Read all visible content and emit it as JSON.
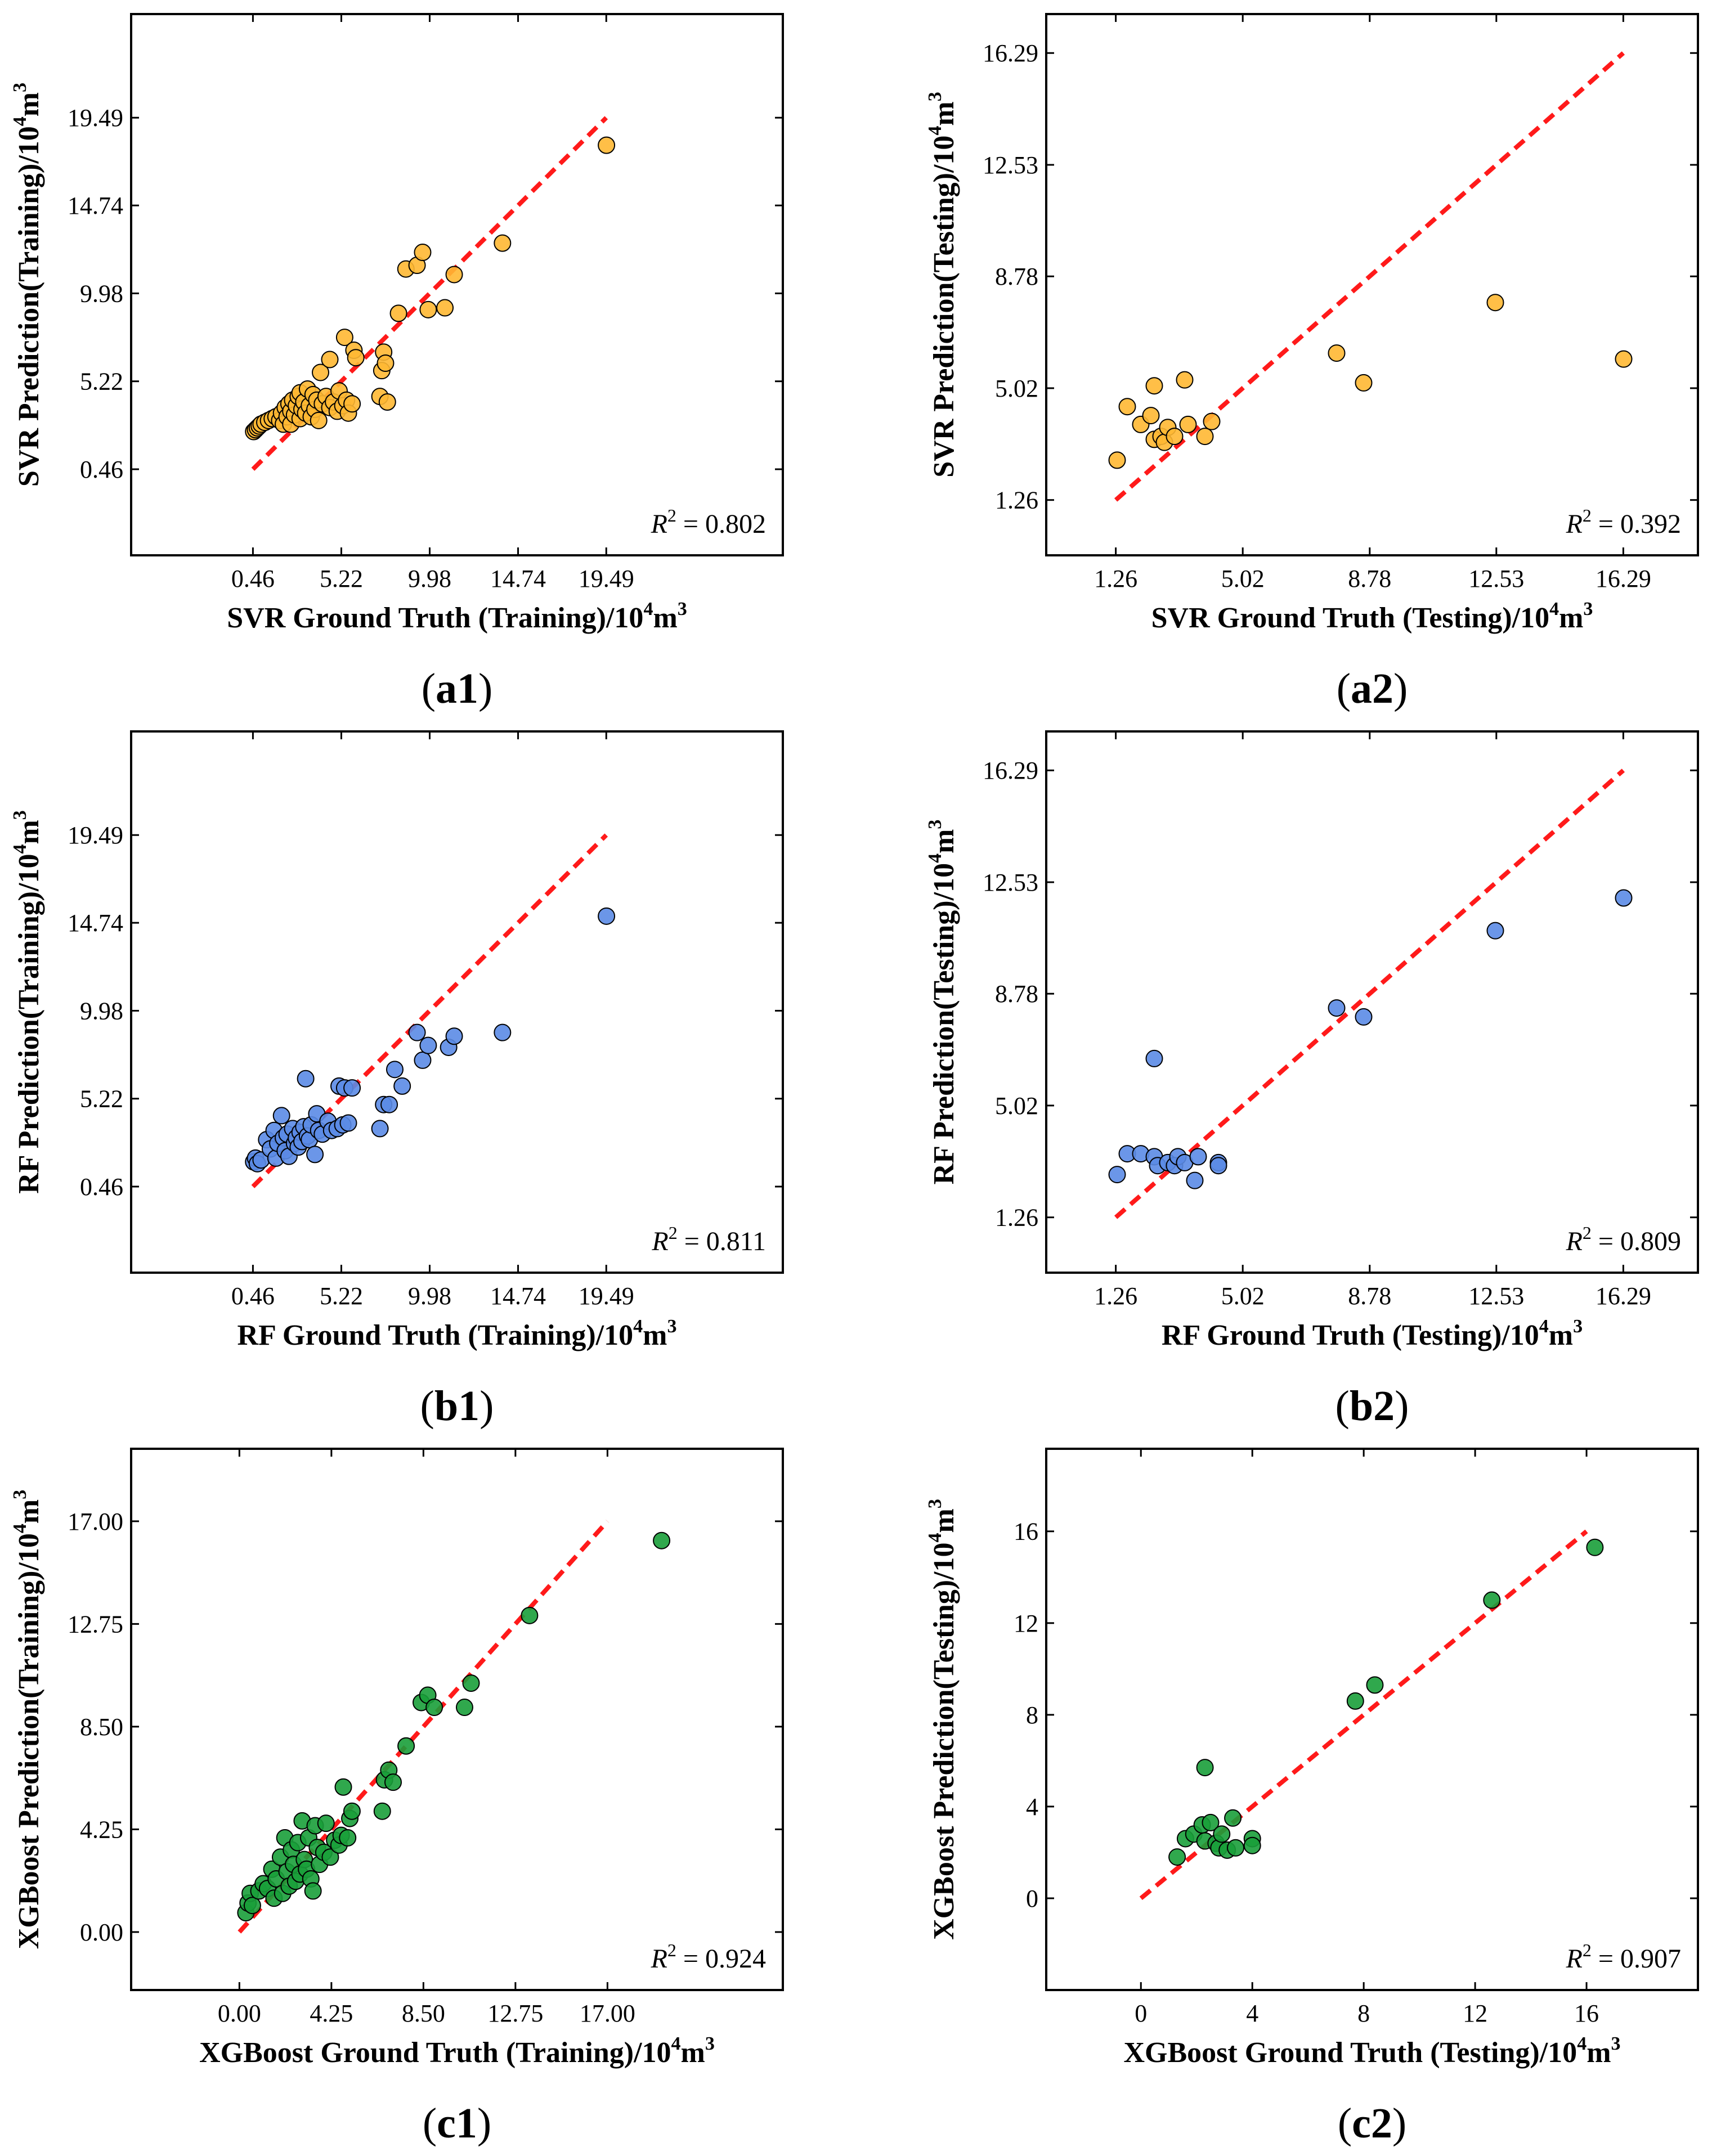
{
  "figure": {
    "colors": {
      "orange": "#ffb833",
      "blue": "#5b8be6",
      "green": "#1a9e3a",
      "ideal_line": "#ff1a1a",
      "marker_edge": "#000000"
    }
  },
  "chart_data": [
    {
      "id": "a1",
      "type": "scatter",
      "panel_label": "a1",
      "color": "orange",
      "xlabel_prefix": "SVR Ground Truth (Training)/10",
      "ylabel_prefix": "SVR Prediction(Training)/10",
      "unit_sup": "4",
      "unit_base": "m",
      "unit_sup2": "3",
      "r2_label": "R",
      "r2_sup": "2",
      "r2_text": " = 0.802",
      "xticks": [
        "0.46",
        "5.22",
        "9.98",
        "14.74",
        "19.49"
      ],
      "yticks": [
        "0.46",
        "5.22",
        "9.98",
        "14.74",
        "19.49"
      ],
      "xlim": [
        -6.1,
        29.0
      ],
      "ylim": [
        -4.2,
        25.1
      ],
      "ideal_line": [
        0.46,
        19.49
      ],
      "points": [
        [
          0.5,
          2.5
        ],
        [
          0.6,
          2.6
        ],
        [
          0.7,
          2.7
        ],
        [
          0.8,
          2.8
        ],
        [
          0.9,
          2.9
        ],
        [
          1.1,
          3.0
        ],
        [
          1.3,
          3.1
        ],
        [
          1.5,
          3.2
        ],
        [
          1.7,
          3.3
        ],
        [
          1.9,
          3.1
        ],
        [
          2.0,
          3.5
        ],
        [
          2.1,
          2.9
        ],
        [
          2.2,
          3.8
        ],
        [
          2.3,
          3.3
        ],
        [
          2.4,
          4.0
        ],
        [
          2.5,
          3.6
        ],
        [
          2.5,
          2.9
        ],
        [
          2.6,
          4.2
        ],
        [
          2.7,
          3.4
        ],
        [
          2.8,
          3.9
        ],
        [
          2.9,
          4.4
        ],
        [
          3.0,
          3.2
        ],
        [
          3.0,
          4.6
        ],
        [
          3.1,
          3.7
        ],
        [
          3.2,
          4.1
        ],
        [
          3.3,
          3.5
        ],
        [
          3.4,
          4.8
        ],
        [
          3.5,
          3.9
        ],
        [
          3.6,
          3.3
        ],
        [
          3.7,
          4.5
        ],
        [
          3.8,
          3.7
        ],
        [
          3.9,
          4.2
        ],
        [
          4.0,
          3.1
        ],
        [
          4.1,
          5.7
        ],
        [
          4.2,
          4.0
        ],
        [
          4.4,
          4.4
        ],
        [
          4.6,
          3.8
        ],
        [
          4.8,
          4.1
        ],
        [
          5.0,
          3.6
        ],
        [
          5.1,
          4.7
        ],
        [
          5.3,
          3.9
        ],
        [
          5.5,
          4.2
        ],
        [
          5.6,
          3.5
        ],
        [
          5.8,
          4.0
        ],
        [
          4.6,
          6.4
        ],
        [
          5.4,
          7.6
        ],
        [
          5.9,
          6.9
        ],
        [
          6.0,
          6.5
        ],
        [
          7.4,
          5.8
        ],
        [
          7.5,
          6.8
        ],
        [
          7.6,
          6.2
        ],
        [
          7.3,
          4.4
        ],
        [
          7.7,
          4.1
        ],
        [
          8.3,
          8.9
        ],
        [
          8.7,
          11.3
        ],
        [
          9.3,
          11.5
        ],
        [
          9.6,
          12.2
        ],
        [
          9.9,
          9.1
        ],
        [
          10.8,
          9.2
        ],
        [
          11.3,
          11.0
        ],
        [
          13.9,
          12.7
        ],
        [
          19.5,
          18.0
        ]
      ]
    },
    {
      "id": "a2",
      "type": "scatter",
      "panel_label": "a2",
      "color": "orange",
      "xlabel_prefix": "SVR Ground Truth (Testing)/10",
      "ylabel_prefix": "SVR Prediction(Testing)/10",
      "unit_sup": "4",
      "unit_base": "m",
      "unit_sup2": "3",
      "r2_label": "R",
      "r2_sup": "2",
      "r2_text": " = 0.392",
      "xticks": [
        "1.26",
        "5.02",
        "8.78",
        "12.53",
        "16.29"
      ],
      "yticks": [
        "1.26",
        "5.02",
        "8.78",
        "12.53",
        "16.29"
      ],
      "xlim": [
        -0.8,
        18.5
      ],
      "ylim": [
        -0.6,
        17.6
      ],
      "ideal_line": [
        1.26,
        16.29
      ],
      "points": [
        [
          1.3,
          2.6
        ],
        [
          1.6,
          4.4
        ],
        [
          2.0,
          3.8
        ],
        [
          2.3,
          4.1
        ],
        [
          2.4,
          3.3
        ],
        [
          2.6,
          3.4
        ],
        [
          2.7,
          3.2
        ],
        [
          2.8,
          3.7
        ],
        [
          3.0,
          3.4
        ],
        [
          3.3,
          5.3
        ],
        [
          3.4,
          3.8
        ],
        [
          3.9,
          3.4
        ],
        [
          4.1,
          3.9
        ],
        [
          2.4,
          5.1
        ],
        [
          7.8,
          6.2
        ],
        [
          8.6,
          5.2
        ],
        [
          12.5,
          7.9
        ],
        [
          16.3,
          6.0
        ]
      ]
    },
    {
      "id": "b1",
      "type": "scatter",
      "panel_label": "b1",
      "color": "blue",
      "xlabel_prefix": "RF Ground Truth (Training)/10",
      "ylabel_prefix": "RF Prediction(Training)/10",
      "unit_sup": "4",
      "unit_base": "m",
      "unit_sup2": "3",
      "r2_label": "R",
      "r2_sup": "2",
      "r2_text": " = 0.811",
      "xticks": [
        "0.46",
        "5.22",
        "9.98",
        "14.74",
        "19.49"
      ],
      "yticks": [
        "0.46",
        "5.22",
        "9.98",
        "14.74",
        "19.49"
      ],
      "xlim": [
        -6.1,
        29.0
      ],
      "ylim": [
        -4.2,
        25.1
      ],
      "ideal_line": [
        0.46,
        19.49
      ],
      "points": [
        [
          0.5,
          1.8
        ],
        [
          0.6,
          2.0
        ],
        [
          0.7,
          1.7
        ],
        [
          0.9,
          1.9
        ],
        [
          1.2,
          3.0
        ],
        [
          1.4,
          2.5
        ],
        [
          1.6,
          3.5
        ],
        [
          1.7,
          2.0
        ],
        [
          1.8,
          2.8
        ],
        [
          2.0,
          4.3
        ],
        [
          2.1,
          3.1
        ],
        [
          2.2,
          2.4
        ],
        [
          2.3,
          3.3
        ],
        [
          2.4,
          2.1
        ],
        [
          2.6,
          3.6
        ],
        [
          2.7,
          2.8
        ],
        [
          2.8,
          3.1
        ],
        [
          2.9,
          2.6
        ],
        [
          3.0,
          3.4
        ],
        [
          3.1,
          2.9
        ],
        [
          3.2,
          3.7
        ],
        [
          3.3,
          6.3
        ],
        [
          3.4,
          3.2
        ],
        [
          3.5,
          3.0
        ],
        [
          3.6,
          3.8
        ],
        [
          3.8,
          2.2
        ],
        [
          3.9,
          4.4
        ],
        [
          4.0,
          3.5
        ],
        [
          4.2,
          3.3
        ],
        [
          4.5,
          4.0
        ],
        [
          4.7,
          3.5
        ],
        [
          5.0,
          3.6
        ],
        [
          5.1,
          5.9
        ],
        [
          5.3,
          3.8
        ],
        [
          5.4,
          5.8
        ],
        [
          5.6,
          3.9
        ],
        [
          5.8,
          5.8
        ],
        [
          7.3,
          3.6
        ],
        [
          7.5,
          4.9
        ],
        [
          7.8,
          4.9
        ],
        [
          8.1,
          6.8
        ],
        [
          8.5,
          5.9
        ],
        [
          9.3,
          8.8
        ],
        [
          9.6,
          7.3
        ],
        [
          9.9,
          8.1
        ],
        [
          11.0,
          8.0
        ],
        [
          11.3,
          8.6
        ],
        [
          13.9,
          8.8
        ],
        [
          19.5,
          15.1
        ]
      ]
    },
    {
      "id": "b2",
      "type": "scatter",
      "panel_label": "b2",
      "color": "blue",
      "xlabel_prefix": "RF Ground Truth (Testing)/10",
      "ylabel_prefix": "RF Prediction(Testing)/10",
      "unit_sup": "4",
      "unit_base": "m",
      "unit_sup2": "3",
      "r2_label": "R",
      "r2_sup": "2",
      "r2_text": " = 0.809",
      "xticks": [
        "1.26",
        "5.02",
        "8.78",
        "12.53",
        "16.29"
      ],
      "yticks": [
        "1.26",
        "5.02",
        "8.78",
        "12.53",
        "16.29"
      ],
      "xlim": [
        -0.8,
        18.5
      ],
      "ylim": [
        -0.6,
        17.6
      ],
      "ideal_line": [
        1.26,
        16.29
      ],
      "points": [
        [
          1.3,
          2.7
        ],
        [
          1.6,
          3.4
        ],
        [
          2.0,
          3.4
        ],
        [
          2.4,
          3.3
        ],
        [
          2.5,
          3.0
        ],
        [
          2.8,
          3.1
        ],
        [
          3.0,
          3.0
        ],
        [
          3.1,
          3.3
        ],
        [
          3.3,
          3.1
        ],
        [
          3.6,
          2.5
        ],
        [
          3.7,
          3.3
        ],
        [
          4.3,
          3.1
        ],
        [
          4.3,
          3.0
        ],
        [
          2.4,
          6.6
        ],
        [
          7.8,
          8.3
        ],
        [
          8.6,
          8.0
        ],
        [
          12.5,
          10.9
        ],
        [
          16.3,
          12.0
        ]
      ]
    },
    {
      "id": "c1",
      "type": "scatter",
      "panel_label": "c1",
      "color": "green",
      "xlabel_prefix": "XGBoost Ground Truth (Training)/10",
      "ylabel_prefix": "XGBoost Prediction(Training)/10",
      "unit_sup": "4",
      "unit_base": "m",
      "unit_sup2": "3",
      "r2_label": "R",
      "r2_sup": "2",
      "r2_text": " = 0.924",
      "xticks": [
        "0.00",
        "4.25",
        "8.50",
        "12.75",
        "17.00"
      ],
      "yticks": [
        "0.00",
        "4.25",
        "8.50",
        "12.75",
        "17.00"
      ],
      "xlim": [
        -5.0,
        25.1
      ],
      "ylim": [
        -2.4,
        20.0
      ],
      "ideal_line": [
        0.0,
        17.0
      ],
      "points": [
        [
          0.3,
          0.8
        ],
        [
          0.4,
          1.2
        ],
        [
          0.5,
          1.6
        ],
        [
          0.6,
          1.1
        ],
        [
          0.9,
          1.7
        ],
        [
          1.1,
          2.0
        ],
        [
          1.3,
          1.8
        ],
        [
          1.5,
          2.6
        ],
        [
          1.6,
          1.4
        ],
        [
          1.7,
          2.2
        ],
        [
          1.9,
          3.1
        ],
        [
          2.0,
          1.6
        ],
        [
          2.1,
          3.9
        ],
        [
          2.2,
          2.5
        ],
        [
          2.3,
          1.9
        ],
        [
          2.4,
          3.4
        ],
        [
          2.5,
          2.8
        ],
        [
          2.6,
          2.1
        ],
        [
          2.7,
          3.7
        ],
        [
          2.8,
          2.4
        ],
        [
          2.9,
          4.6
        ],
        [
          3.0,
          3.0
        ],
        [
          3.1,
          2.6
        ],
        [
          3.2,
          3.9
        ],
        [
          3.3,
          2.2
        ],
        [
          3.4,
          1.7
        ],
        [
          3.5,
          4.4
        ],
        [
          3.6,
          3.5
        ],
        [
          3.7,
          2.8
        ],
        [
          3.9,
          3.3
        ],
        [
          4.0,
          4.5
        ],
        [
          4.2,
          3.1
        ],
        [
          4.4,
          3.8
        ],
        [
          4.6,
          3.6
        ],
        [
          4.7,
          4.0
        ],
        [
          4.8,
          6.0
        ],
        [
          5.0,
          3.9
        ],
        [
          5.1,
          4.7
        ],
        [
          5.2,
          5.0
        ],
        [
          6.6,
          5.0
        ],
        [
          6.7,
          6.3
        ],
        [
          6.9,
          6.7
        ],
        [
          7.1,
          6.2
        ],
        [
          7.7,
          7.7
        ],
        [
          8.4,
          9.5
        ],
        [
          8.7,
          9.8
        ],
        [
          9.0,
          9.3
        ],
        [
          10.4,
          9.3
        ],
        [
          10.7,
          10.3
        ],
        [
          13.4,
          13.1
        ],
        [
          19.5,
          16.2
        ]
      ]
    },
    {
      "id": "c2",
      "type": "scatter",
      "panel_label": "c2",
      "color": "green",
      "xlabel_prefix": "XGBoost Ground Truth (Testing)/10",
      "ylabel_prefix": "XGBoost Prediction(Testing)/10",
      "unit_sup": "4",
      "unit_base": "m",
      "unit_sup2": "3",
      "r2_label": "R",
      "r2_sup": "2",
      "r2_text": " = 0.907",
      "xticks": [
        "0",
        "4",
        "8",
        "12",
        "16"
      ],
      "yticks": [
        "0",
        "4",
        "8",
        "12",
        "16"
      ],
      "xlim": [
        -3.4,
        20.0
      ],
      "ylim": [
        -4.0,
        19.6
      ],
      "ideal_line": [
        0.0,
        16.0
      ],
      "points": [
        [
          1.3,
          1.8
        ],
        [
          1.6,
          2.6
        ],
        [
          1.9,
          2.8
        ],
        [
          2.2,
          3.2
        ],
        [
          2.3,
          2.5
        ],
        [
          2.5,
          3.3
        ],
        [
          2.7,
          2.4
        ],
        [
          2.8,
          2.2
        ],
        [
          2.9,
          2.8
        ],
        [
          3.1,
          2.1
        ],
        [
          3.3,
          3.5
        ],
        [
          3.4,
          2.2
        ],
        [
          4.0,
          2.6
        ],
        [
          4.0,
          2.3
        ],
        [
          2.3,
          5.7
        ],
        [
          7.7,
          8.6
        ],
        [
          8.4,
          9.3
        ],
        [
          12.6,
          13.0
        ],
        [
          16.3,
          15.3
        ]
      ]
    }
  ]
}
